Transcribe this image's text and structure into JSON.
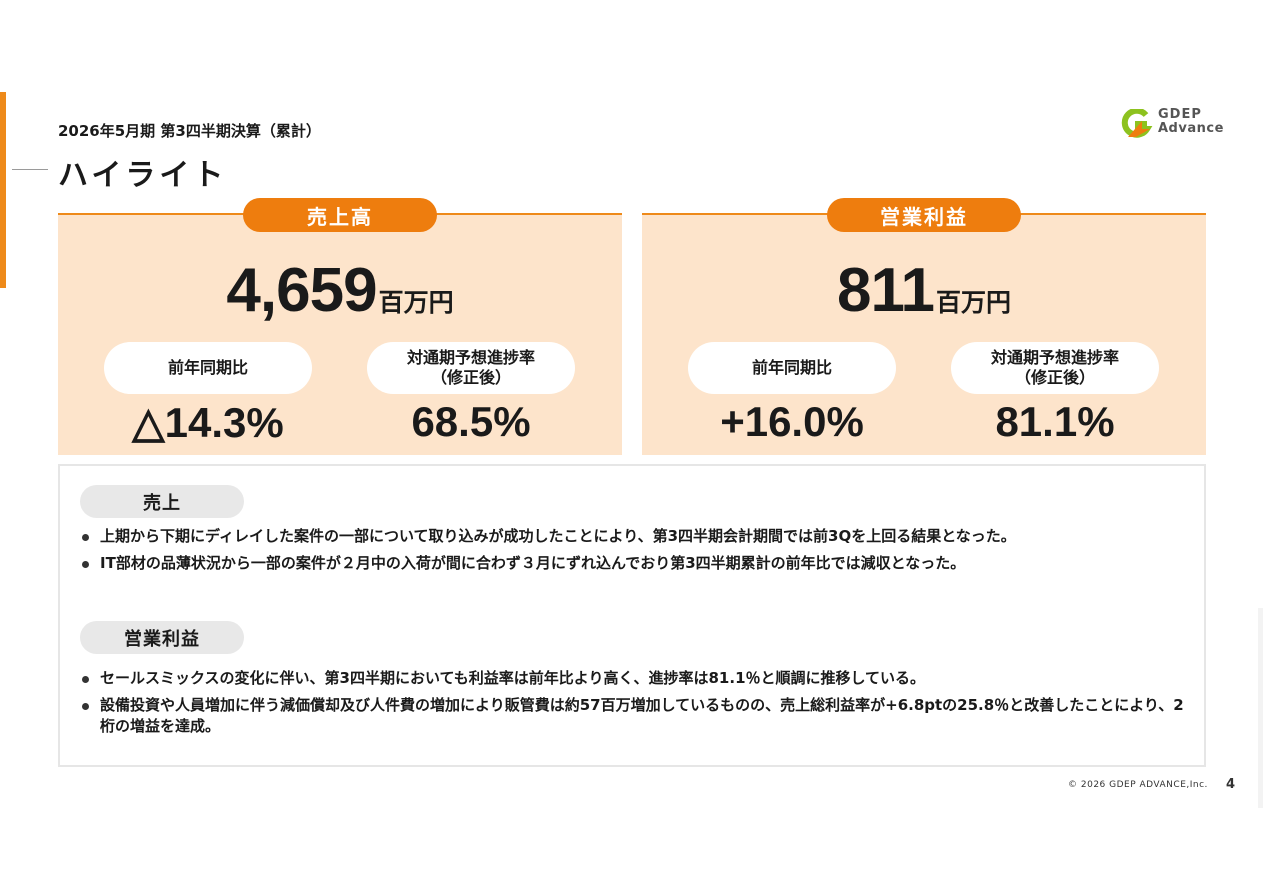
{
  "header": {
    "subtitle": "2026年5月期 第3四半期決算（累計）",
    "title": "ハイライト"
  },
  "logo": {
    "line1": "GDEP",
    "line2": "Advance"
  },
  "panels": [
    {
      "tag": "売上高",
      "value": "4,659",
      "unit": "百万円",
      "yoy_label": "前年同期比",
      "yoy_value": "△14.3%",
      "progress_label_1": "対通期予想進捗率",
      "progress_label_2": "（修正後）",
      "progress_value": "68.5%"
    },
    {
      "tag": "営業利益",
      "value": "811",
      "unit": "百万円",
      "yoy_label": "前年同期比",
      "yoy_value": "+16.0%",
      "progress_label_1": "対通期予想進捗率",
      "progress_label_2": "（修正後）",
      "progress_value": "81.1%"
    }
  ],
  "details": {
    "sales_label": "売上",
    "sales_bullets": [
      "上期から下期にディレイした案件の一部について取り込みが成功したことにより、第3四半期会計期間では前3Qを上回る結果となった。",
      "IT部材の品薄状況から一部の案件が２月中の入荷が間に合わず３月にずれ込んでおり第3四半期累計の前年比では減収となった。"
    ],
    "op_label": "営業利益",
    "op_bullets": [
      "セールスミックスの変化に伴い、第3四半期においても利益率は前年比より高く、進捗率は81.1％と順調に推移している。",
      "設備投資や人員増加に伴う減価償却及び人件費の増加により販管費は約57百万増加しているものの、売上総利益率が+6.8ptの25.8％と改善したことにより、2桁の増益を達成。"
    ]
  },
  "footer": {
    "copyright": "© 2026 GDEP ADVANCE,Inc.",
    "page": "4"
  },
  "colors": {
    "accent": "#ee7d0e",
    "panel_bg": "#fde4cb",
    "logo_green": "#8dc21f",
    "logo_orange": "#ee7d0e"
  }
}
